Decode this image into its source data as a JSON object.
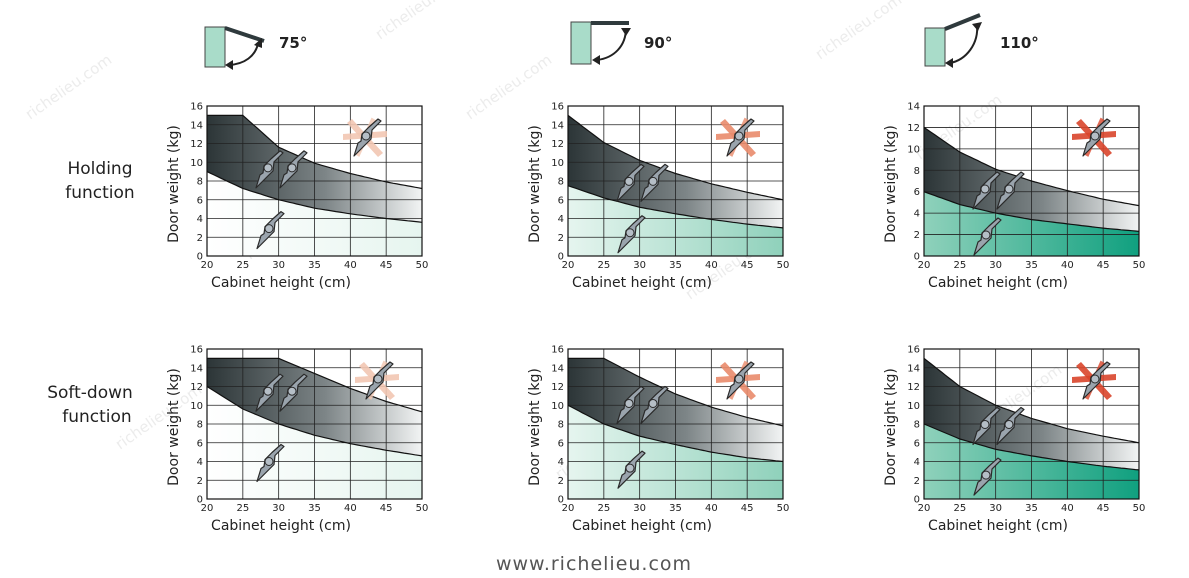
{
  "footer": "www.richelieu.com",
  "watermark": "richelieu.com",
  "row_labels": [
    [
      "Holding",
      "function"
    ],
    [
      "Soft-down",
      "function"
    ]
  ],
  "angles": [
    "75°",
    "90°",
    "110°"
  ],
  "colors": {
    "dark_band": "#2c3537",
    "green_light": "#e6f5ef",
    "green_mid": "#8fd1bb",
    "green_strong": "#10a07f",
    "x_mark_75": "#f2c7b2",
    "x_mark_90": "#e98b6c",
    "x_mark_110": "#d9452b",
    "hinge_icon": "#9aa4ad"
  },
  "icons": [
    "door-angle-icon",
    "hinge-icon",
    "cross-out-icon"
  ],
  "chart_data": [
    {
      "type": "area",
      "row": "holding",
      "angle": "75°",
      "xlabel": "Cabinet height (cm)",
      "ylabel": "Door weight (kg)",
      "x_ticks": [
        20,
        25,
        30,
        35,
        40,
        45,
        50
      ],
      "y_ticks": [
        0,
        2,
        4,
        6,
        8,
        10,
        12,
        14,
        16
      ],
      "xlim": [
        20,
        50
      ],
      "ylim": [
        0,
        16
      ],
      "grid": true,
      "upper_curve": {
        "x": [
          20,
          25,
          30,
          35,
          40,
          45,
          50
        ],
        "y": [
          15,
          15,
          11.6,
          9.9,
          8.8,
          7.9,
          7.2
        ]
      },
      "lower_curve": {
        "x": [
          20,
          25,
          30,
          35,
          40,
          45,
          50
        ],
        "y": [
          9,
          7.2,
          6,
          5.1,
          4.5,
          4,
          3.6
        ]
      }
    },
    {
      "type": "area",
      "row": "holding",
      "angle": "90°",
      "xlabel": "Cabinet height (cm)",
      "ylabel": "Door weight (kg)",
      "x_ticks": [
        20,
        25,
        30,
        35,
        40,
        45,
        50
      ],
      "y_ticks": [
        0,
        2,
        4,
        6,
        8,
        10,
        12,
        14,
        16
      ],
      "xlim": [
        20,
        50
      ],
      "ylim": [
        0,
        16
      ],
      "grid": true,
      "upper_curve": {
        "x": [
          20,
          25,
          30,
          35,
          40,
          45,
          50
        ],
        "y": [
          15,
          12.1,
          10.2,
          8.8,
          7.7,
          6.8,
          6
        ]
      },
      "lower_curve": {
        "x": [
          20,
          25,
          30,
          35,
          40,
          45,
          50
        ],
        "y": [
          7.5,
          6.2,
          5.2,
          4.5,
          3.9,
          3.4,
          3
        ]
      }
    },
    {
      "type": "area",
      "row": "holding",
      "angle": "110°",
      "xlabel": "Cabinet height (cm)",
      "ylabel": "Door weight (kg)",
      "x_ticks": [
        20,
        25,
        30,
        35,
        40,
        45,
        50
      ],
      "y_ticks": [
        0,
        2,
        4,
        6,
        8,
        10,
        12,
        14
      ],
      "xlim": [
        20,
        50
      ],
      "ylim": [
        0,
        14
      ],
      "grid": true,
      "upper_curve": {
        "x": [
          20,
          25,
          30,
          35,
          40,
          45,
          50
        ],
        "y": [
          12,
          9.7,
          8.1,
          7,
          6.1,
          5.3,
          4.7
        ]
      },
      "lower_curve": {
        "x": [
          20,
          25,
          30,
          35,
          40,
          45,
          50
        ],
        "y": [
          6,
          4.8,
          4,
          3.4,
          3,
          2.6,
          2.3
        ]
      }
    },
    {
      "type": "area",
      "row": "soft-down",
      "angle": "75°",
      "xlabel": "Cabinet height (cm)",
      "ylabel": "Door weight (kg)",
      "x_ticks": [
        20,
        25,
        30,
        35,
        40,
        45,
        50
      ],
      "y_ticks": [
        0,
        2,
        4,
        6,
        8,
        10,
        12,
        14,
        16
      ],
      "xlim": [
        20,
        50
      ],
      "ylim": [
        0,
        16
      ],
      "grid": true,
      "upper_curve": {
        "x": [
          20,
          25,
          30,
          35,
          40,
          45,
          50
        ],
        "y": [
          15,
          15,
          15,
          13.4,
          11.8,
          10.4,
          9.3
        ]
      },
      "lower_curve": {
        "x": [
          20,
          25,
          30,
          35,
          40,
          45,
          50
        ],
        "y": [
          12,
          9.6,
          8,
          6.8,
          5.9,
          5.2,
          4.6
        ]
      }
    },
    {
      "type": "area",
      "row": "soft-down",
      "angle": "90°",
      "xlabel": "Cabinet height (cm)",
      "ylabel": "Door weight (kg)",
      "x_ticks": [
        20,
        25,
        30,
        35,
        40,
        45,
        50
      ],
      "y_ticks": [
        0,
        2,
        4,
        6,
        8,
        10,
        12,
        14,
        16
      ],
      "xlim": [
        20,
        50
      ],
      "ylim": [
        0,
        16
      ],
      "grid": true,
      "upper_curve": {
        "x": [
          20,
          25,
          30,
          35,
          40,
          45,
          50
        ],
        "y": [
          15,
          15,
          13,
          11.2,
          9.8,
          8.7,
          7.8
        ]
      },
      "lower_curve": {
        "x": [
          20,
          25,
          30,
          35,
          40,
          45,
          50
        ],
        "y": [
          10,
          8,
          6.7,
          5.8,
          5,
          4.4,
          4
        ]
      }
    },
    {
      "type": "area",
      "row": "soft-down",
      "angle": "110°",
      "xlabel": "Cabinet height (cm)",
      "ylabel": "Door weight (kg)",
      "x_ticks": [
        20,
        25,
        30,
        35,
        40,
        45,
        50
      ],
      "y_ticks": [
        0,
        2,
        4,
        6,
        8,
        10,
        12,
        14,
        16
      ],
      "xlim": [
        20,
        50
      ],
      "ylim": [
        0,
        16
      ],
      "grid": true,
      "upper_curve": {
        "x": [
          20,
          25,
          30,
          35,
          40,
          45,
          50
        ],
        "y": [
          15,
          12,
          10,
          8.6,
          7.5,
          6.7,
          6
        ]
      },
      "lower_curve": {
        "x": [
          20,
          25,
          30,
          35,
          40,
          45,
          50
        ],
        "y": [
          8,
          6.4,
          5.3,
          4.6,
          4,
          3.5,
          3.1
        ]
      }
    }
  ]
}
